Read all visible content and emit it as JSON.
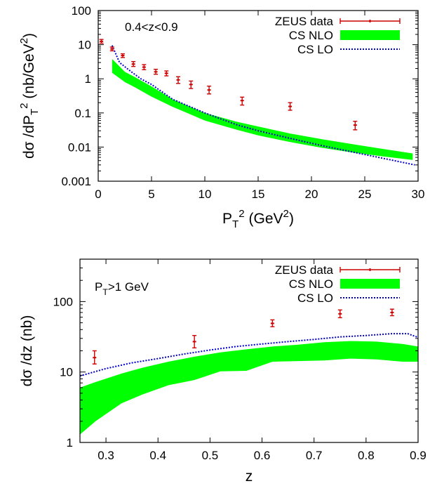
{
  "chart_data": [
    {
      "type": "scatter",
      "panel": "top",
      "annotation": "0.4<z<0.9",
      "xlabel": "P_T^2 (GeV^2)",
      "ylabel": "dσ /dP_T^2 (nb/GeV^2)",
      "xlim": [
        0,
        30
      ],
      "ylim": [
        0.001,
        100
      ],
      "yscale": "log",
      "xticks": [
        "0",
        "5",
        "10",
        "15",
        "20",
        "25",
        "30"
      ],
      "yticks": [
        "0.001",
        "0.01",
        "0.1",
        "1",
        "10",
        "100"
      ],
      "legend_position": "top-right",
      "series": [
        {
          "name": "ZEUS data",
          "kind": "points",
          "color": "#cc0000",
          "x": [
            0.3,
            1.3,
            2.3,
            3.3,
            4.3,
            5.4,
            6.4,
            7.5,
            8.7,
            10.4,
            13.5,
            18.0,
            24.1
          ],
          "y": [
            12.5,
            7.5,
            4.8,
            2.7,
            2.2,
            1.6,
            1.45,
            0.93,
            0.68,
            0.47,
            0.23,
            0.155,
            0.044
          ],
          "yerr_low": [
            11.0,
            6.6,
            4.2,
            2.3,
            1.85,
            1.36,
            1.22,
            0.73,
            0.52,
            0.36,
            0.17,
            0.12,
            0.032
          ],
          "yerr_high": [
            14.2,
            8.5,
            5.4,
            3.2,
            2.6,
            1.9,
            1.7,
            1.15,
            0.86,
            0.61,
            0.29,
            0.2,
            0.057
          ]
        },
        {
          "name": "CS NLO",
          "kind": "band",
          "color": "#00ff00",
          "x": [
            1.3,
            2.5,
            3.5,
            5,
            7,
            10,
            13,
            15,
            18,
            21,
            24,
            27,
            29.5
          ],
          "low": [
            1.5,
            0.8,
            0.55,
            0.3,
            0.15,
            0.06,
            0.032,
            0.022,
            0.014,
            0.0095,
            0.0068,
            0.0052,
            0.0042
          ],
          "high": [
            3.8,
            1.6,
            1.1,
            0.6,
            0.25,
            0.1,
            0.055,
            0.04,
            0.025,
            0.017,
            0.012,
            0.0085,
            0.0065
          ]
        },
        {
          "name": "CS LO",
          "kind": "line",
          "color": "#0000cc",
          "x": [
            1.3,
            2,
            3,
            4,
            5,
            7,
            10,
            13,
            15,
            18,
            21,
            24,
            27,
            29.7
          ],
          "y": [
            9.5,
            3.0,
            1.7,
            1.0,
            0.68,
            0.25,
            0.1,
            0.045,
            0.03,
            0.018,
            0.011,
            0.007,
            0.0045,
            0.003
          ]
        }
      ]
    },
    {
      "type": "scatter",
      "panel": "bottom",
      "annotation": "P_T>1 GeV",
      "xlabel": "z",
      "ylabel": "dσ /dz (nb)",
      "xlim": [
        0.25,
        0.9
      ],
      "ylim": [
        1,
        400
      ],
      "yscale": "log",
      "xticks": [
        "0.3",
        "0.4",
        "0.5",
        "0.6",
        "0.7",
        "0.8",
        "0.9"
      ],
      "yticks": [
        "1",
        "10",
        "100"
      ],
      "legend_position": "top-right",
      "series": [
        {
          "name": "ZEUS data",
          "kind": "points",
          "color": "#cc0000",
          "x": [
            0.278,
            0.47,
            0.62,
            0.75,
            0.85
          ],
          "y": [
            16,
            27,
            49,
            67,
            70
          ],
          "yerr_low": [
            13,
            22,
            44,
            59,
            63
          ],
          "yerr_high": [
            20,
            33,
            55,
            76,
            78
          ]
        },
        {
          "name": "CS NLO",
          "kind": "band",
          "color": "#00ff00",
          "x": [
            0.25,
            0.28,
            0.33,
            0.37,
            0.42,
            0.47,
            0.52,
            0.57,
            0.62,
            0.67,
            0.72,
            0.77,
            0.82,
            0.87,
            0.9
          ],
          "low": [
            1.3,
            2.0,
            3.6,
            4.8,
            6.5,
            7.7,
            10.2,
            10.4,
            14,
            14.3,
            14.6,
            15.5,
            15.1,
            14.0,
            14.0
          ],
          "high": [
            6.0,
            7.2,
            9.5,
            11.5,
            14,
            16.5,
            19,
            21,
            23,
            24.5,
            26.5,
            27.5,
            27,
            25,
            23
          ]
        },
        {
          "name": "CS LO",
          "kind": "line",
          "color": "#0000cc",
          "x": [
            0.25,
            0.3,
            0.35,
            0.4,
            0.45,
            0.5,
            0.55,
            0.6,
            0.65,
            0.7,
            0.75,
            0.8,
            0.85,
            0.88,
            0.9
          ],
          "y": [
            8.8,
            11.2,
            13.5,
            15.5,
            18.0,
            20.5,
            23,
            25,
            27,
            29,
            31.5,
            33,
            35,
            35,
            31
          ]
        }
      ]
    }
  ]
}
